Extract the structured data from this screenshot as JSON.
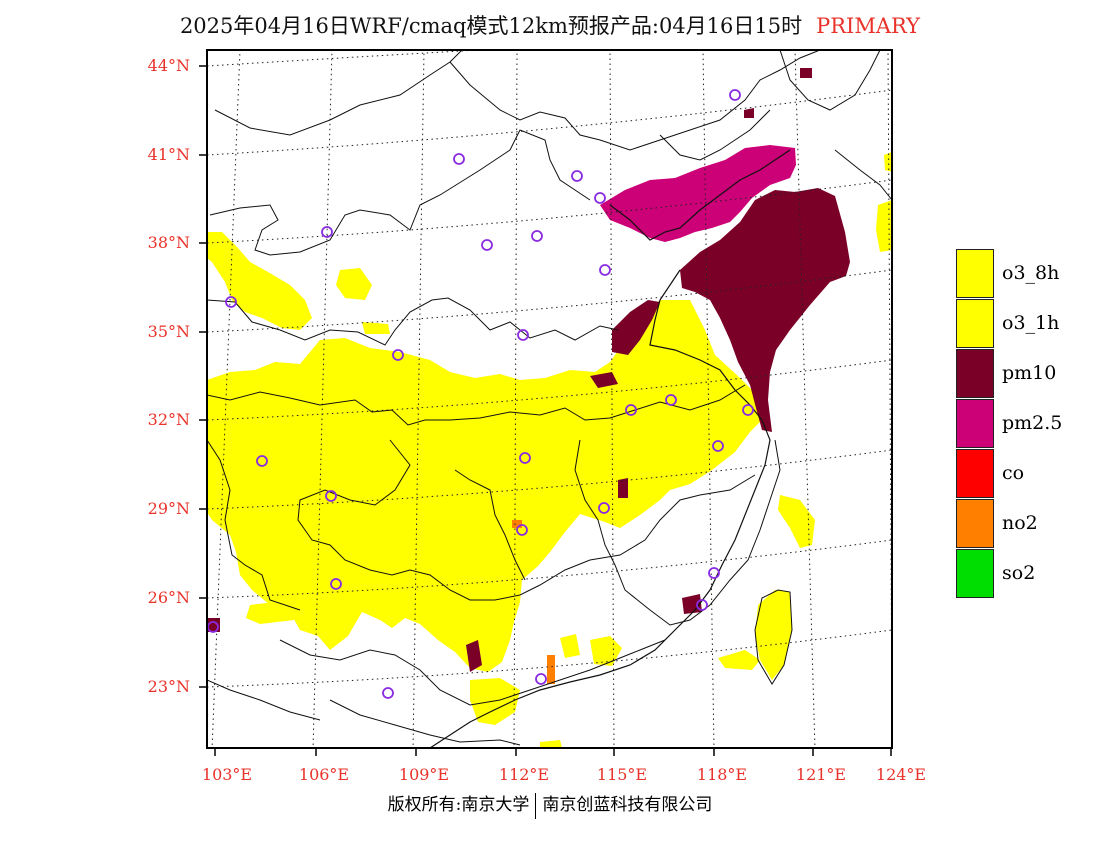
{
  "title": {
    "main": "2025年04月16日WRF/cmaq模式12km预报产品:04月16日15时",
    "tag": "PRIMARY"
  },
  "map": {
    "lat_labels": [
      "44°N",
      "41°N",
      "38°N",
      "35°N",
      "32°N",
      "29°N",
      "26°N",
      "23°N"
    ],
    "lon_labels": [
      "103°E",
      "106°E",
      "109°E",
      "112°E",
      "115°E",
      "118°E",
      "121°E",
      "124°E"
    ],
    "colors": {
      "frame": "#000000",
      "grid": "#222222",
      "border": "#111111",
      "label": "#e8322a",
      "station": "#8a2be2"
    },
    "grid_lines": "dotted"
  },
  "legend": [
    {
      "label": "o3_8h",
      "color": "#ffff00"
    },
    {
      "label": "o3_1h",
      "color": "#ffff00"
    },
    {
      "label": "pm10",
      "color": "#7b0028"
    },
    {
      "label": "pm2.5",
      "color": "#cc0077"
    },
    {
      "label": "co",
      "color": "#ff0000"
    },
    {
      "label": "no2",
      "color": "#ff8000"
    },
    {
      "label": "so2",
      "color": "#00dd00"
    }
  ],
  "footer": {
    "left": "版权所有:南京大学",
    "right": "南京创蓝科技有限公司"
  }
}
